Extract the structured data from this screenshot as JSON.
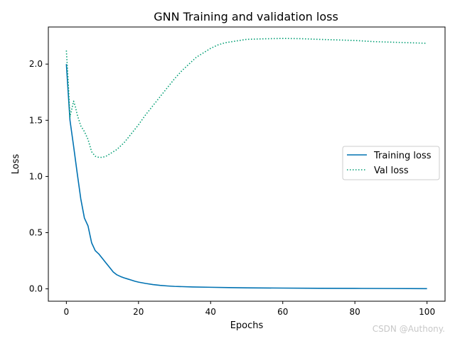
{
  "chart_data": {
    "type": "line",
    "title": "GNN Training and validation loss",
    "xlabel": "Epochs",
    "ylabel": "Loss",
    "xlim": [
      -5,
      105
    ],
    "ylim": [
      -0.11,
      2.33
    ],
    "xticks": [
      0,
      20,
      40,
      60,
      80,
      100
    ],
    "xtick_labels": [
      "0",
      "20",
      "40",
      "60",
      "80",
      "100"
    ],
    "yticks": [
      0.0,
      0.5,
      1.0,
      1.5,
      2.0
    ],
    "ytick_labels": [
      "0.0",
      "0.5",
      "1.0",
      "1.5",
      "2.0"
    ],
    "grid": false,
    "legend_position": "center-right",
    "series": [
      {
        "name": "Training loss",
        "color": "#0072b2",
        "style": "solid",
        "x": [
          0,
          1,
          2,
          3,
          4,
          5,
          6,
          7,
          8,
          9,
          10,
          11,
          12,
          13,
          14,
          15,
          16,
          17,
          18,
          19,
          20,
          22,
          24,
          26,
          28,
          30,
          35,
          40,
          45,
          50,
          60,
          70,
          80,
          90,
          100
        ],
        "values": [
          2.0,
          1.5,
          1.27,
          1.03,
          0.8,
          0.63,
          0.56,
          0.41,
          0.34,
          0.31,
          0.27,
          0.23,
          0.19,
          0.15,
          0.125,
          0.11,
          0.098,
          0.088,
          0.078,
          0.068,
          0.06,
          0.048,
          0.038,
          0.031,
          0.026,
          0.022,
          0.017,
          0.014,
          0.011,
          0.009,
          0.007,
          0.005,
          0.004,
          0.003,
          0.002
        ]
      },
      {
        "name": "Val loss",
        "color": "#009e73",
        "style": "dotted",
        "x": [
          0,
          0.5,
          1,
          1.5,
          2,
          2.5,
          3,
          4,
          5,
          6,
          7,
          8,
          9,
          10,
          11,
          12,
          13,
          14,
          15,
          16,
          17,
          18,
          19,
          20,
          22,
          24,
          26,
          28,
          30,
          32,
          34,
          36,
          38,
          40,
          42,
          44,
          46,
          48,
          50,
          55,
          60,
          65,
          70,
          75,
          80,
          85,
          90,
          95,
          100
        ],
        "values": [
          2.12,
          1.85,
          1.53,
          1.6,
          1.67,
          1.62,
          1.55,
          1.45,
          1.4,
          1.33,
          1.22,
          1.18,
          1.17,
          1.17,
          1.18,
          1.2,
          1.22,
          1.24,
          1.27,
          1.3,
          1.34,
          1.38,
          1.42,
          1.46,
          1.55,
          1.63,
          1.71,
          1.79,
          1.87,
          1.94,
          2.0,
          2.06,
          2.1,
          2.14,
          2.17,
          2.19,
          2.2,
          2.21,
          2.22,
          2.225,
          2.228,
          2.226,
          2.22,
          2.215,
          2.21,
          2.2,
          2.195,
          2.19,
          2.185
        ]
      }
    ]
  },
  "watermark": "CSDN @Authony."
}
